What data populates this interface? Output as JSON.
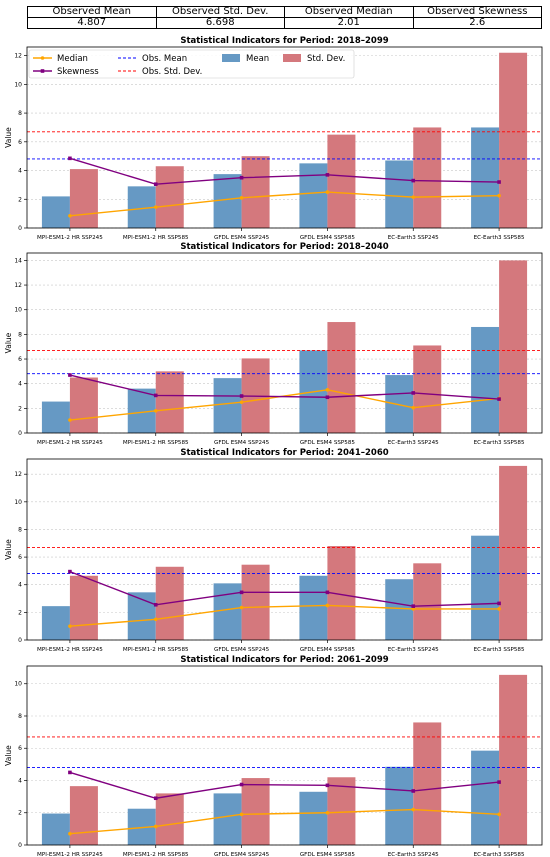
{
  "observed_table": {
    "headers": [
      "Observed Mean",
      "Observed Std. Dev.",
      "Observed Median",
      "Observed Skewness"
    ],
    "values": [
      "4.807",
      "6.698",
      "2.01",
      "2.6"
    ]
  },
  "legend": {
    "median": "Median",
    "skewness": "Skewness",
    "obs_mean": "Obs. Mean",
    "obs_std": "Obs. Std. Dev.",
    "mean": "Mean",
    "std": "Std. Dev."
  },
  "colors": {
    "mean_bar": "#6699c4",
    "std_bar": "#d4787d",
    "median_line": "#ffa500",
    "skewness_line": "#800080",
    "obs_mean_line": "#0000ff",
    "obs_std_line": "#ff0000"
  },
  "chart_data": [
    {
      "type": "bar",
      "title": "Statistical Indicators for Period: 2018–2099",
      "ylabel": "Value",
      "ylim": [
        0,
        12.6
      ],
      "yticks": [
        0,
        2,
        4,
        6,
        8,
        10,
        12
      ],
      "categories": [
        "MPI-ESM1-2 HR SSP245",
        "MPI-ESM1-2 HR SSP585",
        "GFDL ESM4 SSP245",
        "GFDL ESM4 SSP585",
        "EC-Earth3 SSP245",
        "EC-Earth3 SSP585"
      ],
      "series": [
        {
          "name": "Mean",
          "values": [
            2.2,
            2.9,
            3.75,
            4.5,
            4.7,
            7.0
          ]
        },
        {
          "name": "Std. Dev.",
          "values": [
            4.1,
            4.3,
            5.0,
            6.5,
            7.0,
            12.2
          ]
        },
        {
          "name": "Median",
          "values": [
            0.85,
            1.45,
            2.1,
            2.5,
            2.15,
            2.25
          ]
        },
        {
          "name": "Skewness",
          "values": [
            4.85,
            3.05,
            3.5,
            3.7,
            3.3,
            3.2
          ]
        }
      ],
      "obs_mean": 4.807,
      "obs_std": 6.698,
      "grid": true,
      "legend_position": "top-left"
    },
    {
      "type": "bar",
      "title": "Statistical Indicators for Period: 2018–2040",
      "ylabel": "Value",
      "ylim": [
        0,
        14.6
      ],
      "yticks": [
        0,
        2,
        4,
        6,
        8,
        10,
        12,
        14
      ],
      "categories": [
        "MPI-ESM1-2 HR SSP245",
        "MPI-ESM1-2 HR SSP585",
        "GFDL ESM4 SSP245",
        "GFDL ESM4 SSP585",
        "EC-Earth3 SSP245",
        "EC-Earth3 SSP585"
      ],
      "series": [
        {
          "name": "Mean",
          "values": [
            2.55,
            3.6,
            4.45,
            6.7,
            4.7,
            8.6
          ]
        },
        {
          "name": "Std. Dev.",
          "values": [
            4.5,
            5.0,
            6.05,
            9.0,
            7.1,
            14.0
          ]
        },
        {
          "name": "Median",
          "values": [
            1.05,
            1.8,
            2.5,
            3.5,
            2.05,
            2.8
          ]
        },
        {
          "name": "Skewness",
          "values": [
            4.7,
            3.05,
            3.0,
            2.9,
            3.25,
            2.75
          ]
        }
      ],
      "obs_mean": 4.807,
      "obs_std": 6.698,
      "grid": true
    },
    {
      "type": "bar",
      "title": "Statistical Indicators for Period: 2041–2060",
      "ylabel": "Value",
      "ylim": [
        0,
        13.1
      ],
      "yticks": [
        0,
        2,
        4,
        6,
        8,
        10,
        12
      ],
      "categories": [
        "MPI-ESM1-2 HR SSP245",
        "MPI-ESM1-2 HR SSP585",
        "GFDL ESM4 SSP245",
        "GFDL ESM4 SSP585",
        "EC-Earth3 SSP245",
        "EC-Earth3 SSP585"
      ],
      "series": [
        {
          "name": "Mean",
          "values": [
            2.45,
            3.45,
            4.1,
            4.65,
            4.4,
            7.55
          ]
        },
        {
          "name": "Std. Dev.",
          "values": [
            4.65,
            5.3,
            5.45,
            6.8,
            5.55,
            12.6
          ]
        },
        {
          "name": "Median",
          "values": [
            1.0,
            1.5,
            2.35,
            2.5,
            2.25,
            2.25
          ]
        },
        {
          "name": "Skewness",
          "values": [
            4.95,
            2.55,
            3.45,
            3.45,
            2.45,
            2.65
          ]
        }
      ],
      "obs_mean": 4.807,
      "obs_std": 6.698,
      "grid": true
    },
    {
      "type": "bar",
      "title": "Statistical Indicators for Period: 2061–2099",
      "ylabel": "Value",
      "ylim": [
        0,
        11.1
      ],
      "yticks": [
        0,
        2,
        4,
        6,
        8,
        10
      ],
      "categories": [
        "MPI-ESM1-2 HR SSP245",
        "MPI-ESM1-2 HR SSP585",
        "GFDL ESM4 SSP245",
        "GFDL ESM4 SSP585",
        "EC-Earth3 SSP245",
        "EC-Earth3 SSP585"
      ],
      "series": [
        {
          "name": "Mean",
          "values": [
            1.95,
            2.25,
            3.2,
            3.3,
            4.85,
            5.85
          ]
        },
        {
          "name": "Std. Dev.",
          "values": [
            3.65,
            3.2,
            4.15,
            4.2,
            7.6,
            10.55
          ]
        },
        {
          "name": "Median",
          "values": [
            0.7,
            1.15,
            1.9,
            2.0,
            2.2,
            1.9
          ]
        },
        {
          "name": "Skewness",
          "values": [
            4.5,
            2.9,
            3.75,
            3.7,
            3.35,
            3.9
          ]
        }
      ],
      "obs_mean": 4.807,
      "obs_std": 6.698,
      "grid": true
    }
  ]
}
